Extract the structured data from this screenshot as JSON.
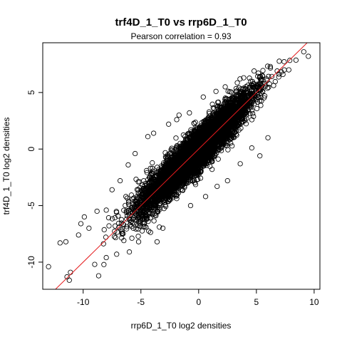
{
  "chart_data": {
    "type": "scatter",
    "title": "trf4D_1_T0 vs rrp6D_1_T0",
    "subtitle": "Pearson correlation =  0.93",
    "xlabel": "rrp6D_1_T0 log2 densities",
    "ylabel": "trf4D_1_T0 log2 densities",
    "xlim": [
      -13.5,
      10.5
    ],
    "ylim": [
      -12.4,
      9.4
    ],
    "x_ticks": [
      -10,
      -5,
      0,
      5,
      10
    ],
    "y_ticks": [
      -10,
      -5,
      0,
      5
    ],
    "x_tick_labels": [
      "-10",
      "-5",
      "0",
      "5",
      "10"
    ],
    "y_tick_labels": [
      "-10",
      "-5",
      "0",
      "5"
    ],
    "grid": false,
    "marker_color": "#000000",
    "fit_line": {
      "slope": 1.0,
      "intercept": 0.0,
      "color": "#e41a1c"
    },
    "distribution": {
      "x_mean": -0.3,
      "x_sd": 2.3,
      "residual_sd": 0.85
    },
    "points": [
      [
        -13.0,
        -10.4
      ],
      [
        9.5,
        8.2
      ],
      [
        9.1,
        8.6
      ],
      [
        -11.2,
        -11.6
      ],
      [
        -11.1,
        -10.9
      ],
      [
        -11.5,
        -8.2
      ],
      [
        -10.2,
        -6.6
      ],
      [
        -9.9,
        -6.0
      ],
      [
        -10.4,
        -7.6
      ],
      [
        -9.5,
        -7.0
      ],
      [
        -8.0,
        -5.4
      ],
      [
        -7.5,
        -3.6
      ],
      [
        -6.8,
        -2.8
      ],
      [
        -6.1,
        -1.4
      ],
      [
        -5.5,
        -0.4
      ],
      [
        -4.4,
        1.1
      ],
      [
        -3.9,
        1.4
      ],
      [
        -2.6,
        2.2
      ],
      [
        -1.7,
        3.0
      ],
      [
        -0.8,
        3.2
      ],
      [
        0.4,
        4.6
      ],
      [
        1.5,
        5.1
      ],
      [
        2.3,
        5.5
      ],
      [
        3.9,
        6.3
      ],
      [
        4.8,
        6.9
      ],
      [
        5.3,
        6.4
      ],
      [
        6.2,
        7.3
      ],
      [
        6.8,
        6.9
      ],
      [
        7.3,
        6.6
      ],
      [
        5.3,
        -0.6
      ],
      [
        6.0,
        1.0
      ],
      [
        4.6,
        0.1
      ],
      [
        3.6,
        -1.3
      ],
      [
        2.5,
        -2.8
      ],
      [
        1.6,
        -3.3
      ],
      [
        0.6,
        -4.2
      ],
      [
        -0.7,
        -5.0
      ],
      [
        -3.1,
        -7.0
      ],
      [
        -3.4,
        -6.9
      ],
      [
        -3.6,
        -8.2
      ],
      [
        -5.2,
        -8.2
      ],
      [
        -6.0,
        -9.1
      ],
      [
        -7.1,
        -9.3
      ],
      [
        -8.0,
        -9.6
      ],
      [
        -9.0,
        -10.2
      ],
      [
        -11.4,
        -11.3
      ],
      [
        -12.0,
        -8.3
      ],
      [
        -6.3,
        -4.2
      ],
      [
        -8.8,
        -5.5
      ],
      [
        -1.9,
        2.6
      ]
    ]
  }
}
